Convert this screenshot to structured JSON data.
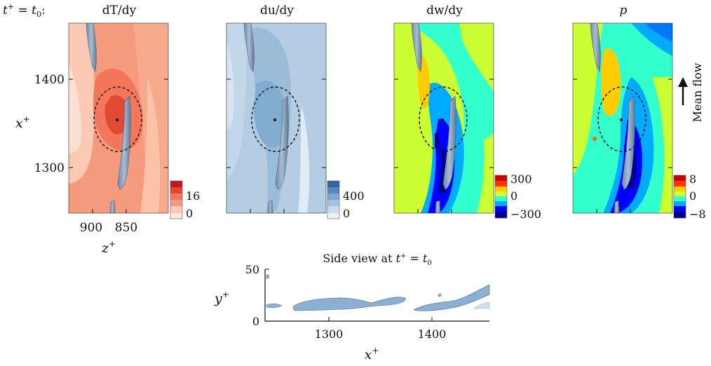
{
  "header": {
    "time_prefix": "t",
    "time_sup": "+",
    "time_eq": " = ",
    "time_sub_base": "t",
    "time_sub": "0",
    "time_colon": ":"
  },
  "panels": [
    {
      "label": "dT/dy",
      "cbar_labels": [
        "16",
        "0"
      ]
    },
    {
      "label": "du/dy",
      "cbar_labels": [
        "400",
        "0"
      ]
    },
    {
      "label": "dw/dy",
      "cbar_labels": [
        "300",
        "0",
        "−300"
      ]
    },
    {
      "label": "p",
      "cbar_labels": [
        "8",
        "0",
        "−8"
      ]
    }
  ],
  "axes": {
    "x_label_base": "x",
    "x_label_sup": "+",
    "z_label_base": "z",
    "z_label_sup": "+",
    "y_label_base": "y",
    "y_label_sup": "+",
    "x_ticks": [
      "1400",
      "1300"
    ],
    "z_ticks": [
      "900",
      "850"
    ]
  },
  "flow_label": "Mean flow",
  "side_view": {
    "title_prefix": "Side view at ",
    "y_ticks": [
      "50",
      "0"
    ],
    "x_ticks": [
      "1300",
      "1400"
    ]
  },
  "colors": {
    "dTdy": [
      "#fde0d3",
      "#f9b69c",
      "#f69a7e",
      "#f2775c",
      "#e04a35"
    ],
    "dudy": [
      "#eef3f9",
      "#cfddec",
      "#b4cde3",
      "#9bbcd9",
      "#6f9cc7"
    ],
    "jet": [
      "#00008b",
      "#0000ff",
      "#00aaff",
      "#33ffcc",
      "#ccff33",
      "#ffcc00",
      "#ff6600",
      "#cc0000"
    ]
  }
}
